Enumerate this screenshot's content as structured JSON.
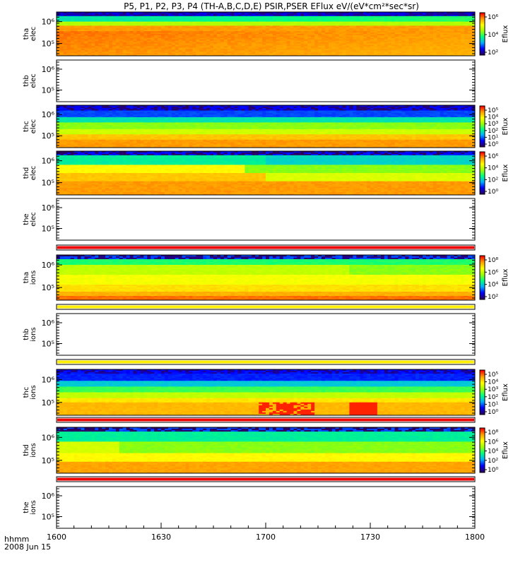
{
  "chart_data": {
    "type": "heatmap",
    "title": "P5, P1, P2, P3, P4 (TH-A,B,C,D,E) PSIR,PSER EFlux eV/(eV*cm²*sec*sr)",
    "x_ticks": [
      "1600",
      "1630",
      "1700",
      "1730",
      "1800"
    ],
    "x_range": [
      "1600",
      "1800"
    ],
    "x_label_1": "hhmm",
    "x_label_2": "2008 Jun 15",
    "y_scale": "log",
    "panels": [
      {
        "label_top": "tha",
        "label_bottom": "elec",
        "has_data": true,
        "profile": "a_elec",
        "cb_ticks": [
          "10⁶",
          "10⁴",
          "10²"
        ],
        "cb_label": "Eflux",
        "y_ticks": [
          "10⁶",
          "10⁵"
        ]
      },
      {
        "label_top": "thb",
        "label_bottom": "elec",
        "has_data": false,
        "y_ticks": [
          "10⁶",
          "10⁵"
        ]
      },
      {
        "label_top": "thc",
        "label_bottom": "elec",
        "has_data": true,
        "profile": "c_elec",
        "cb_ticks": [
          "10⁵",
          "10⁴",
          "10³",
          "10²",
          "10¹",
          "10⁰"
        ],
        "cb_label": "Eflux",
        "y_ticks": [
          "10⁶",
          "10⁵"
        ]
      },
      {
        "label_top": "thd",
        "label_bottom": "elec",
        "has_data": true,
        "profile": "d_elec",
        "cb_ticks": [
          "10⁶",
          "10⁴",
          "10²",
          "10⁰"
        ],
        "cb_label": "Eflux",
        "y_ticks": [
          "10⁶",
          "10⁵"
        ]
      },
      {
        "label_top": "the",
        "label_bottom": "elec",
        "has_data": false,
        "y_ticks": [
          "10⁶",
          "10⁵"
        ]
      },
      {
        "label_top": "tha",
        "label_bottom": "ions",
        "has_data": true,
        "profile": "a_ions",
        "cb_ticks": [
          "10⁸",
          "10⁶",
          "10⁴",
          "10²"
        ],
        "cb_label": "Eflux",
        "y_ticks": [
          "10⁶",
          "10⁵"
        ]
      },
      {
        "label_top": "thb",
        "label_bottom": "ions",
        "has_data": false,
        "y_ticks": [
          "10⁶",
          "10⁵"
        ]
      },
      {
        "label_top": "thc",
        "label_bottom": "ions",
        "has_data": true,
        "profile": "c_ions",
        "cb_ticks": [
          "10⁵",
          "10⁴",
          "10³",
          "10²",
          "10¹",
          "10⁰"
        ],
        "cb_label": "Eflux",
        "y_ticks": [
          "10⁶",
          "10⁵"
        ]
      },
      {
        "label_top": "thd",
        "label_bottom": "ions",
        "has_data": true,
        "profile": "d_ions",
        "cb_ticks": [
          "10⁸",
          "10⁶",
          "10⁴",
          "10²",
          "10⁰"
        ],
        "cb_label": "Eflux",
        "y_ticks": [
          "10⁶",
          "10⁵"
        ]
      },
      {
        "label_top": "the",
        "label_bottom": "ions",
        "has_data": false,
        "y_ticks": [
          "10⁶",
          "10⁵"
        ]
      }
    ],
    "status_bars": [
      {
        "after_panel": 4,
        "color": "#ee0000"
      },
      {
        "after_panel": 5,
        "color": "#ffee00"
      },
      {
        "after_panel": 6,
        "color": "#ffee00"
      },
      {
        "after_panel": 7,
        "color": "#ee0000"
      },
      {
        "after_panel": 8,
        "color": "#ee0000"
      }
    ],
    "colormap": [
      "#2a0060",
      "#0000ff",
      "#00b0ff",
      "#00ff80",
      "#a0ff00",
      "#ffff00",
      "#ffa000",
      "#ff0000"
    ]
  }
}
